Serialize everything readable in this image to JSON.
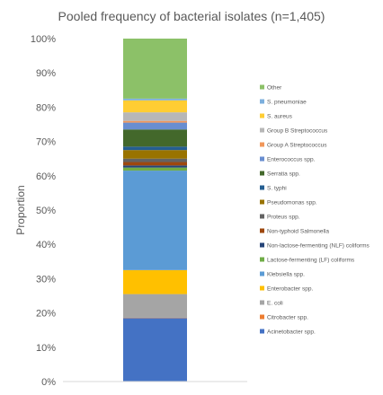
{
  "chart_data": {
    "type": "bar",
    "stacked": true,
    "normalized": true,
    "title": "Pooled frequency of bacterial isolates (n=1,405)",
    "xlabel": "",
    "ylabel": "Proportion",
    "ylim": [
      0,
      1
    ],
    "yticks": [
      "0%",
      "10%",
      "20%",
      "30%",
      "40%",
      "50%",
      "60%",
      "70%",
      "80%",
      "90%",
      "100%"
    ],
    "grid": false,
    "legend_position": "right",
    "categories": [
      ""
    ],
    "series": [
      {
        "name": "Acinetobacter spp.",
        "values": [
          0.185
        ],
        "color": "#4472C4"
      },
      {
        "name": "Citrobacter spp.",
        "values": [
          0.001
        ],
        "color": "#ED7D31"
      },
      {
        "name": "E. coli",
        "values": [
          0.069
        ],
        "color": "#A5A5A5"
      },
      {
        "name": "Enterobacter spp.",
        "values": [
          0.07
        ],
        "color": "#FFC000"
      },
      {
        "name": "Klebsiella spp.",
        "values": [
          0.29
        ],
        "color": "#5B9BD5"
      },
      {
        "name": "Lactose-fermenting (LF) coliforms",
        "values": [
          0.009
        ],
        "color": "#70AD47"
      },
      {
        "name": "Non-lactose-fermenting (NLF) coliforms",
        "values": [
          0.006
        ],
        "color": "#264478"
      },
      {
        "name": "Non-typhoid Salmonella",
        "values": [
          0.01
        ],
        "color": "#9E480E"
      },
      {
        "name": "Proteus spp.",
        "values": [
          0.01
        ],
        "color": "#636363"
      },
      {
        "name": "Pseudomonas spp.",
        "values": [
          0.025
        ],
        "color": "#997300"
      },
      {
        "name": "S. typhi",
        "values": [
          0.01
        ],
        "color": "#255E91"
      },
      {
        "name": "Serratia spp.",
        "values": [
          0.05
        ],
        "color": "#43682B"
      },
      {
        "name": "Enterococcus spp.",
        "values": [
          0.02
        ],
        "color": "#698ED0"
      },
      {
        "name": "Group A Streptococcus",
        "values": [
          0.005
        ],
        "color": "#F1975A"
      },
      {
        "name": "Group B Streptococcus",
        "values": [
          0.025
        ],
        "color": "#B7B7B7"
      },
      {
        "name": "S. aureus",
        "values": [
          0.035
        ],
        "color": "#FFCD33"
      },
      {
        "name": "S. pneumoniae",
        "values": [
          0.005
        ],
        "color": "#7CAFDD"
      },
      {
        "name": "Other",
        "values": [
          0.175
        ],
        "color": "#8CC168"
      }
    ]
  }
}
